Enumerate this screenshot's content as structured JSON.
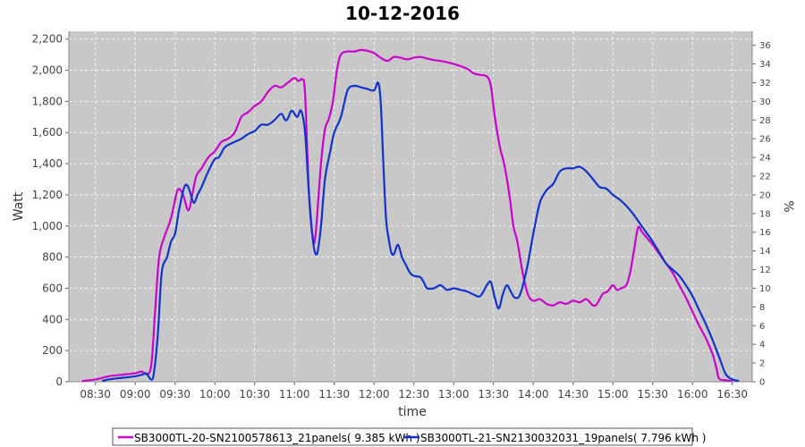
{
  "chart_data": {
    "type": "line",
    "title": "10-12-2016",
    "xlabel": "time",
    "ylabel": "Watt",
    "y2label": "%",
    "ylim": [
      0,
      2250
    ],
    "y2lim": [
      0,
      37.5
    ],
    "xlim": [
      "08:10",
      "16:45"
    ],
    "x_ticks": [
      "08:30",
      "09:00",
      "09:30",
      "10:00",
      "10:30",
      "11:00",
      "11:30",
      "12:00",
      "12:30",
      "13:00",
      "13:30",
      "14:00",
      "14:30",
      "15:00",
      "15:30",
      "16:00",
      "16:30"
    ],
    "y_ticks": [
      0,
      200,
      400,
      600,
      800,
      1000,
      1200,
      1400,
      1600,
      1800,
      2000,
      2200
    ],
    "y_tick_labels": [
      "0",
      "200",
      "400",
      "600",
      "800",
      "1,000",
      "1,200",
      "1,400",
      "1,600",
      "1,800",
      "2,000",
      "2,200"
    ],
    "y2_ticks": [
      0,
      2,
      4,
      6,
      8,
      10,
      12,
      14,
      16,
      18,
      20,
      22,
      24,
      26,
      28,
      30,
      32,
      34,
      36
    ],
    "grid": true,
    "legend_position": "bottom",
    "series": [
      {
        "name": "SB3000TL-20-SN2100578613_21panels( 9.385 kWh )",
        "color": "#cc00cc",
        "points": [
          [
            "08:20",
            5
          ],
          [
            "08:30",
            15
          ],
          [
            "08:40",
            35
          ],
          [
            "08:50",
            45
          ],
          [
            "09:00",
            55
          ],
          [
            "09:05",
            65
          ],
          [
            "09:08",
            50
          ],
          [
            "09:12",
            100
          ],
          [
            "09:15",
            450
          ],
          [
            "09:18",
            800
          ],
          [
            "09:22",
            930
          ],
          [
            "09:27",
            1050
          ],
          [
            "09:32",
            1230
          ],
          [
            "09:36",
            1200
          ],
          [
            "09:40",
            1100
          ],
          [
            "09:43",
            1200
          ],
          [
            "09:46",
            1320
          ],
          [
            "09:50",
            1370
          ],
          [
            "09:55",
            1440
          ],
          [
            "10:00",
            1480
          ],
          [
            "10:05",
            1540
          ],
          [
            "10:10",
            1560
          ],
          [
            "10:15",
            1600
          ],
          [
            "10:20",
            1700
          ],
          [
            "10:25",
            1730
          ],
          [
            "10:30",
            1770
          ],
          [
            "10:35",
            1800
          ],
          [
            "10:40",
            1860
          ],
          [
            "10:45",
            1900
          ],
          [
            "10:50",
            1890
          ],
          [
            "10:55",
            1920
          ],
          [
            "11:00",
            1950
          ],
          [
            "11:03",
            1930
          ],
          [
            "11:06",
            1940
          ],
          [
            "11:08",
            1850
          ],
          [
            "11:11",
            1200
          ],
          [
            "11:14",
            920
          ],
          [
            "11:16",
            950
          ],
          [
            "11:20",
            1400
          ],
          [
            "11:23",
            1620
          ],
          [
            "11:26",
            1690
          ],
          [
            "11:29",
            1800
          ],
          [
            "11:32",
            2000
          ],
          [
            "11:35",
            2100
          ],
          [
            "11:40",
            2120
          ],
          [
            "11:45",
            2120
          ],
          [
            "11:50",
            2130
          ],
          [
            "11:55",
            2125
          ],
          [
            "12:00",
            2110
          ],
          [
            "12:05",
            2080
          ],
          [
            "12:10",
            2060
          ],
          [
            "12:15",
            2085
          ],
          [
            "12:20",
            2080
          ],
          [
            "12:25",
            2070
          ],
          [
            "12:30",
            2080
          ],
          [
            "12:35",
            2085
          ],
          [
            "12:40",
            2075
          ],
          [
            "12:45",
            2065
          ],
          [
            "12:50",
            2060
          ],
          [
            "13:00",
            2040
          ],
          [
            "13:10",
            2010
          ],
          [
            "13:15",
            1980
          ],
          [
            "13:20",
            1970
          ],
          [
            "13:25",
            1960
          ],
          [
            "13:28",
            1900
          ],
          [
            "13:31",
            1700
          ],
          [
            "13:35",
            1500
          ],
          [
            "13:38",
            1400
          ],
          [
            "13:42",
            1200
          ],
          [
            "13:45",
            1000
          ],
          [
            "13:48",
            900
          ],
          [
            "13:52",
            700
          ],
          [
            "13:56",
            560
          ],
          [
            "14:00",
            520
          ],
          [
            "14:05",
            530
          ],
          [
            "14:10",
            500
          ],
          [
            "14:15",
            490
          ],
          [
            "14:20",
            510
          ],
          [
            "14:25",
            500
          ],
          [
            "14:30",
            520
          ],
          [
            "14:35",
            510
          ],
          [
            "14:40",
            530
          ],
          [
            "14:45",
            490
          ],
          [
            "14:48",
            500
          ],
          [
            "14:52",
            560
          ],
          [
            "14:56",
            580
          ],
          [
            "15:00",
            620
          ],
          [
            "15:03",
            590
          ],
          [
            "15:06",
            600
          ],
          [
            "15:10",
            620
          ],
          [
            "15:13",
            700
          ],
          [
            "15:16",
            850
          ],
          [
            "15:19",
            990
          ],
          [
            "15:22",
            960
          ],
          [
            "15:26",
            920
          ],
          [
            "15:30",
            880
          ],
          [
            "15:35",
            820
          ],
          [
            "15:40",
            760
          ],
          [
            "15:45",
            700
          ],
          [
            "15:50",
            620
          ],
          [
            "15:55",
            540
          ],
          [
            "16:00",
            450
          ],
          [
            "16:05",
            360
          ],
          [
            "16:10",
            280
          ],
          [
            "16:15",
            180
          ],
          [
            "16:18",
            90
          ],
          [
            "16:20",
            20
          ],
          [
            "16:25",
            10
          ],
          [
            "16:30",
            5
          ]
        ]
      },
      {
        "name": "SB3000TL-21-SN2130032031_19panels( 7.796 kWh )",
        "color": "#1133cc",
        "points": [
          [
            "08:35",
            5
          ],
          [
            "08:40",
            15
          ],
          [
            "08:50",
            25
          ],
          [
            "09:00",
            35
          ],
          [
            "09:05",
            45
          ],
          [
            "09:08",
            55
          ],
          [
            "09:10",
            35
          ],
          [
            "09:12",
            15
          ],
          [
            "09:14",
            50
          ],
          [
            "09:17",
            300
          ],
          [
            "09:20",
            700
          ],
          [
            "09:24",
            800
          ],
          [
            "09:27",
            900
          ],
          [
            "09:30",
            950
          ],
          [
            "09:33",
            1100
          ],
          [
            "09:37",
            1250
          ],
          [
            "09:40",
            1250
          ],
          [
            "09:44",
            1150
          ],
          [
            "09:47",
            1200
          ],
          [
            "09:50",
            1250
          ],
          [
            "09:55",
            1350
          ],
          [
            "10:00",
            1430
          ],
          [
            "10:03",
            1440
          ],
          [
            "10:07",
            1500
          ],
          [
            "10:10",
            1520
          ],
          [
            "10:15",
            1540
          ],
          [
            "10:20",
            1560
          ],
          [
            "10:25",
            1590
          ],
          [
            "10:30",
            1610
          ],
          [
            "10:35",
            1650
          ],
          [
            "10:40",
            1650
          ],
          [
            "10:45",
            1680
          ],
          [
            "10:50",
            1720
          ],
          [
            "10:53",
            1680
          ],
          [
            "10:55",
            1690
          ],
          [
            "10:58",
            1740
          ],
          [
            "11:02",
            1700
          ],
          [
            "11:05",
            1740
          ],
          [
            "11:08",
            1600
          ],
          [
            "11:11",
            1200
          ],
          [
            "11:14",
            900
          ],
          [
            "11:17",
            820
          ],
          [
            "11:20",
            1000
          ],
          [
            "11:23",
            1300
          ],
          [
            "11:27",
            1480
          ],
          [
            "11:30",
            1600
          ],
          [
            "11:35",
            1700
          ],
          [
            "11:40",
            1870
          ],
          [
            "11:45",
            1900
          ],
          [
            "11:50",
            1890
          ],
          [
            "11:55",
            1880
          ],
          [
            "12:00",
            1870
          ],
          [
            "12:03",
            1920
          ],
          [
            "12:05",
            1800
          ],
          [
            "12:07",
            1400
          ],
          [
            "12:09",
            1050
          ],
          [
            "12:11",
            920
          ],
          [
            "12:13",
            830
          ],
          [
            "12:15",
            820
          ],
          [
            "12:18",
            880
          ],
          [
            "12:21",
            800
          ],
          [
            "12:24",
            750
          ],
          [
            "12:27",
            700
          ],
          [
            "12:30",
            680
          ],
          [
            "12:35",
            670
          ],
          [
            "12:38",
            630
          ],
          [
            "12:40",
            600
          ],
          [
            "12:45",
            600
          ],
          [
            "12:50",
            620
          ],
          [
            "12:55",
            590
          ],
          [
            "13:00",
            600
          ],
          [
            "13:05",
            590
          ],
          [
            "13:10",
            580
          ],
          [
            "13:15",
            560
          ],
          [
            "13:20",
            550
          ],
          [
            "13:25",
            620
          ],
          [
            "13:28",
            640
          ],
          [
            "13:31",
            540
          ],
          [
            "13:34",
            470
          ],
          [
            "13:37",
            560
          ],
          [
            "13:40",
            620
          ],
          [
            "13:43",
            580
          ],
          [
            "13:46",
            540
          ],
          [
            "13:50",
            560
          ],
          [
            "13:55",
            720
          ],
          [
            "14:00",
            950
          ],
          [
            "14:05",
            1150
          ],
          [
            "14:10",
            1230
          ],
          [
            "14:15",
            1270
          ],
          [
            "14:20",
            1350
          ],
          [
            "14:25",
            1370
          ],
          [
            "14:30",
            1370
          ],
          [
            "14:35",
            1380
          ],
          [
            "14:40",
            1350
          ],
          [
            "14:45",
            1300
          ],
          [
            "14:50",
            1250
          ],
          [
            "14:55",
            1240
          ],
          [
            "15:00",
            1200
          ],
          [
            "15:05",
            1170
          ],
          [
            "15:10",
            1130
          ],
          [
            "15:15",
            1080
          ],
          [
            "15:20",
            1020
          ],
          [
            "15:25",
            960
          ],
          [
            "15:30",
            900
          ],
          [
            "15:35",
            830
          ],
          [
            "15:40",
            760
          ],
          [
            "15:45",
            720
          ],
          [
            "15:50",
            680
          ],
          [
            "15:55",
            620
          ],
          [
            "16:00",
            550
          ],
          [
            "16:05",
            460
          ],
          [
            "16:10",
            370
          ],
          [
            "16:15",
            270
          ],
          [
            "16:20",
            160
          ],
          [
            "16:25",
            50
          ],
          [
            "16:30",
            15
          ],
          [
            "16:35",
            5
          ]
        ]
      }
    ]
  }
}
